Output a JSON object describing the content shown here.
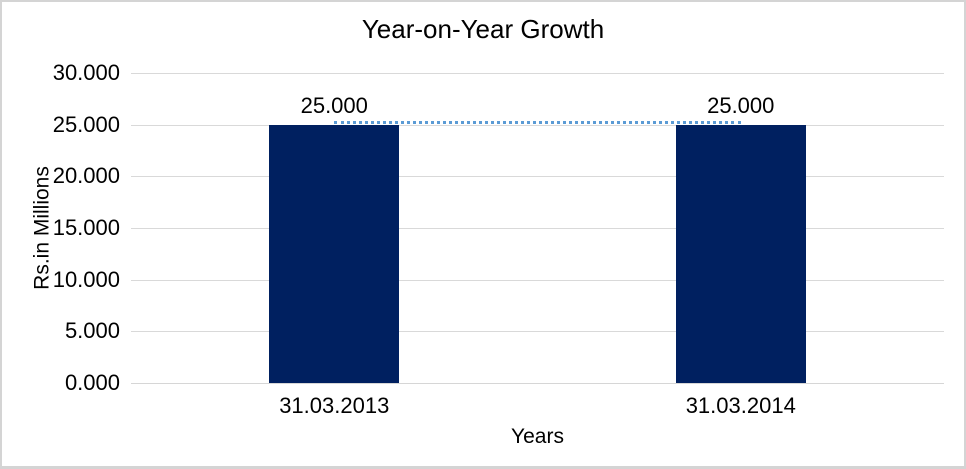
{
  "chart_data": {
    "type": "bar",
    "title": "Year-on-Year Growth",
    "xlabel": "Years",
    "ylabel": "Rs.in Millions",
    "categories": [
      "31.03.2013",
      "31.03.2014"
    ],
    "series": [
      {
        "name": "Rs.in Millions",
        "values": [
          25000,
          25000
        ]
      }
    ],
    "value_labels": [
      "25.000",
      "25.000"
    ],
    "y_ticks": [
      "0.000",
      "5.000",
      "10.000",
      "15.000",
      "20.000",
      "25.000",
      "30.000"
    ],
    "ylim": [
      0,
      30000
    ],
    "grid": true,
    "legend": "none",
    "bar_color": "#002060",
    "gridline_color": "#d9d9d9",
    "trendline": {
      "style": "dotted",
      "color": "#5b9bd5",
      "from_category": "31.03.2013",
      "to_category": "31.03.2014",
      "value": 25000
    }
  }
}
